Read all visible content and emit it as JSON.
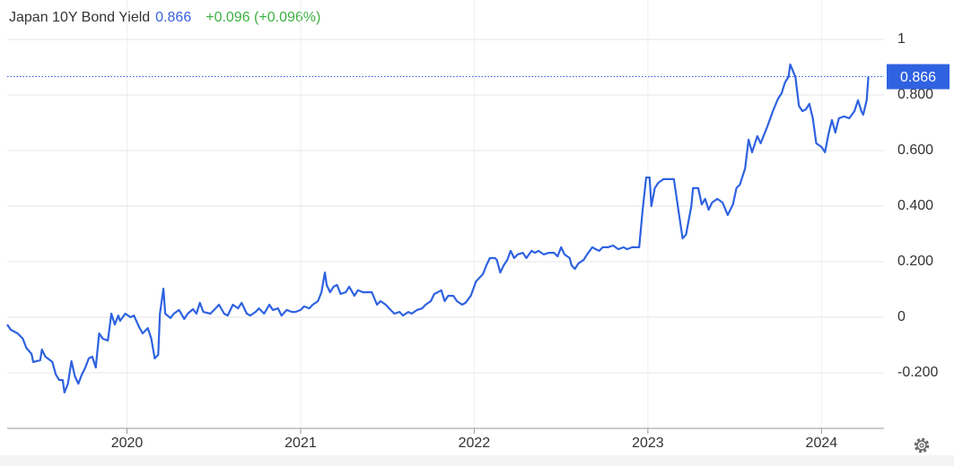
{
  "chart_data": {
    "type": "line",
    "title": "Japan 10Y Bond Yield",
    "last_value": 0.866,
    "change": "+0.096 (+0.096%)",
    "color": "#2f62e0",
    "grid": true,
    "xlim": [
      2019.31,
      2024.36
    ],
    "xticks": [
      2020,
      2021,
      2022,
      2023,
      2024
    ],
    "ylim": [
      -0.4,
      1.1
    ],
    "yticks": [
      {
        "value": -0.2,
        "label": "-0.200"
      },
      0,
      {
        "value": 0.2,
        "label": "0.200"
      },
      {
        "value": 0.4,
        "label": "0.400"
      },
      {
        "value": 0.6,
        "label": "0.600"
      },
      {
        "value": 0.8,
        "label": "0.800"
      },
      1
    ],
    "x": [
      2019.31,
      2019.33,
      2019.37,
      2019.4,
      2019.42,
      2019.45,
      2019.46,
      2019.5,
      2019.51,
      2019.53,
      2019.57,
      2019.59,
      2019.61,
      2019.63,
      2019.64,
      2019.66,
      2019.68,
      2019.7,
      2019.72,
      2019.74,
      2019.76,
      2019.78,
      2019.8,
      2019.82,
      2019.84,
      2019.86,
      2019.89,
      2019.91,
      2019.93,
      2019.95,
      2019.96,
      2019.99,
      2020.02,
      2020.04,
      2020.07,
      2020.09,
      2020.12,
      2020.14,
      2020.16,
      2020.18,
      2020.19,
      2020.21,
      2020.22,
      2020.25,
      2020.27,
      2020.3,
      2020.33,
      2020.35,
      2020.38,
      2020.4,
      2020.42,
      2020.44,
      2020.48,
      2020.51,
      2020.53,
      2020.56,
      2020.58,
      2020.61,
      2020.64,
      2020.66,
      2020.69,
      2020.71,
      2020.74,
      2020.76,
      2020.79,
      2020.82,
      2020.84,
      2020.87,
      2020.89,
      2020.92,
      2020.95,
      2020.97,
      2021.0,
      2021.02,
      2021.05,
      2021.07,
      2021.1,
      2021.12,
      2021.14,
      2021.15,
      2021.17,
      2021.19,
      2021.21,
      2021.23,
      2021.26,
      2021.28,
      2021.31,
      2021.33,
      2021.36,
      2021.39,
      2021.41,
      2021.44,
      2021.46,
      2021.49,
      2021.51,
      2021.54,
      2021.57,
      2021.59,
      2021.62,
      2021.64,
      2021.67,
      2021.7,
      2021.72,
      2021.75,
      2021.77,
      2021.79,
      2021.81,
      2021.83,
      2021.85,
      2021.88,
      2021.9,
      2021.93,
      2021.95,
      2021.98,
      2022.01,
      2022.03,
      2022.05,
      2022.07,
      2022.09,
      2022.12,
      2022.13,
      2022.15,
      2022.17,
      2022.19,
      2022.21,
      2022.23,
      2022.25,
      2022.28,
      2022.3,
      2022.33,
      2022.35,
      2022.37,
      2022.4,
      2022.43,
      2022.46,
      2022.48,
      2022.5,
      2022.52,
      2022.55,
      2022.56,
      2022.58,
      2022.6,
      2022.63,
      2022.65,
      2022.68,
      2022.7,
      2022.72,
      2022.74,
      2022.77,
      2022.8,
      2022.83,
      2022.86,
      2022.88,
      2022.91,
      2022.95,
      2022.97,
      2022.99,
      2023.01,
      2023.02,
      2023.04,
      2023.06,
      2023.09,
      2023.12,
      2023.15,
      2023.18,
      2023.2,
      2023.22,
      2023.25,
      2023.26,
      2023.29,
      2023.31,
      2023.33,
      2023.35,
      2023.37,
      2023.4,
      2023.43,
      2023.46,
      2023.49,
      2023.51,
      2023.53,
      2023.56,
      2023.58,
      2023.6,
      2023.63,
      2023.65,
      2023.67,
      2023.69,
      2023.72,
      2023.75,
      2023.77,
      2023.79,
      2023.81,
      2023.82,
      2023.85,
      2023.87,
      2023.89,
      2023.91,
      2023.93,
      2023.95,
      2023.97,
      2024.0,
      2024.02,
      2024.04,
      2024.06,
      2024.08,
      2024.1,
      2024.13,
      2024.16,
      2024.19,
      2024.21,
      2024.23,
      2024.24,
      2024.26,
      2024.27
    ],
    "values": [
      -0.026,
      -0.045,
      -0.058,
      -0.077,
      -0.11,
      -0.132,
      -0.161,
      -0.155,
      -0.116,
      -0.142,
      -0.161,
      -0.206,
      -0.226,
      -0.226,
      -0.271,
      -0.239,
      -0.158,
      -0.213,
      -0.239,
      -0.206,
      -0.181,
      -0.148,
      -0.142,
      -0.181,
      -0.058,
      -0.077,
      -0.084,
      0.013,
      -0.026,
      0.006,
      -0.013,
      0.013,
      0,
      0.006,
      -0.035,
      -0.058,
      -0.039,
      -0.077,
      -0.148,
      -0.135,
      0.013,
      0.103,
      0.013,
      -0.003,
      0.013,
      0.026,
      -0.006,
      0.013,
      0.029,
      0.013,
      0.052,
      0.019,
      0.013,
      0.032,
      0.045,
      0.013,
      0.006,
      0.045,
      0.032,
      0.052,
      0.013,
      0.006,
      0.019,
      0.032,
      0.013,
      0.045,
      0.026,
      0.032,
      0.006,
      0.026,
      0.019,
      0.019,
      0.026,
      0.039,
      0.032,
      0.045,
      0.058,
      0.09,
      0.161,
      0.116,
      0.09,
      0.11,
      0.116,
      0.084,
      0.09,
      0.11,
      0.077,
      0.097,
      0.09,
      0.09,
      0.09,
      0.045,
      0.058,
      0.045,
      0.032,
      0.013,
      0.019,
      0.006,
      0.019,
      0.013,
      0.026,
      0.032,
      0.045,
      0.058,
      0.084,
      0.09,
      0.097,
      0.058,
      0.077,
      0.077,
      0.058,
      0.045,
      0.052,
      0.077,
      0.129,
      0.142,
      0.155,
      0.187,
      0.213,
      0.213,
      0.206,
      0.161,
      0.187,
      0.206,
      0.239,
      0.213,
      0.226,
      0.232,
      0.213,
      0.239,
      0.232,
      0.239,
      0.226,
      0.232,
      0.232,
      0.219,
      0.252,
      0.226,
      0.213,
      0.187,
      0.174,
      0.194,
      0.206,
      0.226,
      0.252,
      0.245,
      0.239,
      0.252,
      0.252,
      0.258,
      0.245,
      0.252,
      0.245,
      0.252,
      0.252,
      0.387,
      0.503,
      0.503,
      0.4,
      0.465,
      0.484,
      0.497,
      0.497,
      0.497,
      0.368,
      0.284,
      0.297,
      0.4,
      0.465,
      0.465,
      0.406,
      0.426,
      0.387,
      0.413,
      0.426,
      0.413,
      0.368,
      0.406,
      0.465,
      0.477,
      0.535,
      0.639,
      0.594,
      0.652,
      0.626,
      0.658,
      0.69,
      0.742,
      0.787,
      0.806,
      0.845,
      0.865,
      0.91,
      0.865,
      0.761,
      0.742,
      0.748,
      0.768,
      0.716,
      0.626,
      0.613,
      0.594,
      0.658,
      0.71,
      0.665,
      0.716,
      0.723,
      0.716,
      0.742,
      0.781,
      0.742,
      0.729,
      0.781,
      0.866
    ]
  }
}
